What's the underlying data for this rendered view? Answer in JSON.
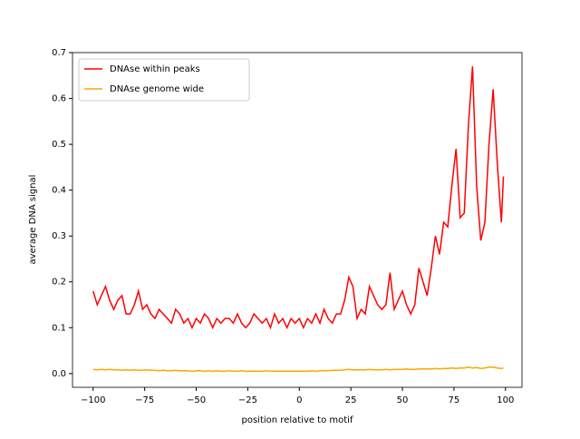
{
  "chart_data": {
    "type": "line",
    "xlabel": "position relative to motif",
    "ylabel": "average DNA signal",
    "x": [
      -100,
      -98,
      -96,
      -94,
      -92,
      -90,
      -88,
      -86,
      -84,
      -82,
      -80,
      -78,
      -76,
      -74,
      -72,
      -70,
      -68,
      -66,
      -64,
      -62,
      -60,
      -58,
      -56,
      -54,
      -52,
      -50,
      -48,
      -46,
      -44,
      -42,
      -40,
      -38,
      -36,
      -34,
      -32,
      -30,
      -28,
      -26,
      -24,
      -22,
      -20,
      -18,
      -16,
      -14,
      -12,
      -10,
      -8,
      -6,
      -4,
      -2,
      0,
      2,
      4,
      6,
      8,
      10,
      12,
      14,
      16,
      18,
      20,
      22,
      24,
      26,
      28,
      30,
      32,
      34,
      36,
      38,
      40,
      42,
      44,
      46,
      48,
      50,
      52,
      54,
      56,
      58,
      60,
      62,
      64,
      66,
      68,
      70,
      72,
      74,
      76,
      78,
      80,
      82,
      84,
      86,
      88,
      90,
      92,
      94,
      96,
      98,
      99
    ],
    "series": [
      {
        "name": "DNAse within peaks",
        "color": "#ff0000",
        "values": [
          0.18,
          0.15,
          0.17,
          0.19,
          0.16,
          0.14,
          0.16,
          0.17,
          0.13,
          0.13,
          0.15,
          0.18,
          0.14,
          0.15,
          0.13,
          0.12,
          0.14,
          0.13,
          0.12,
          0.11,
          0.14,
          0.13,
          0.11,
          0.12,
          0.1,
          0.12,
          0.11,
          0.13,
          0.12,
          0.1,
          0.12,
          0.11,
          0.12,
          0.12,
          0.11,
          0.13,
          0.11,
          0.1,
          0.11,
          0.13,
          0.12,
          0.11,
          0.12,
          0.1,
          0.13,
          0.11,
          0.12,
          0.1,
          0.12,
          0.11,
          0.12,
          0.1,
          0.12,
          0.11,
          0.13,
          0.11,
          0.14,
          0.12,
          0.11,
          0.13,
          0.13,
          0.16,
          0.21,
          0.19,
          0.12,
          0.14,
          0.13,
          0.19,
          0.17,
          0.15,
          0.14,
          0.15,
          0.22,
          0.14,
          0.16,
          0.18,
          0.15,
          0.13,
          0.15,
          0.23,
          0.2,
          0.17,
          0.23,
          0.3,
          0.26,
          0.33,
          0.32,
          0.41,
          0.49,
          0.34,
          0.35,
          0.54,
          0.67,
          0.41,
          0.29,
          0.33,
          0.5,
          0.62,
          0.46,
          0.33,
          0.43
        ]
      },
      {
        "name": "DNAse genome wide",
        "color": "#ffa500",
        "values": [
          0.009,
          0.008,
          0.009,
          0.008,
          0.009,
          0.008,
          0.008,
          0.007,
          0.008,
          0.007,
          0.008,
          0.007,
          0.007,
          0.008,
          0.007,
          0.007,
          0.006,
          0.007,
          0.006,
          0.006,
          0.007,
          0.006,
          0.006,
          0.006,
          0.005,
          0.006,
          0.006,
          0.005,
          0.006,
          0.005,
          0.006,
          0.005,
          0.005,
          0.006,
          0.005,
          0.005,
          0.006,
          0.005,
          0.005,
          0.005,
          0.005,
          0.005,
          0.006,
          0.005,
          0.005,
          0.005,
          0.005,
          0.005,
          0.005,
          0.005,
          0.005,
          0.005,
          0.005,
          0.006,
          0.005,
          0.006,
          0.006,
          0.006,
          0.007,
          0.007,
          0.007,
          0.008,
          0.009,
          0.008,
          0.008,
          0.008,
          0.008,
          0.009,
          0.008,
          0.008,
          0.008,
          0.009,
          0.008,
          0.009,
          0.009,
          0.009,
          0.01,
          0.009,
          0.009,
          0.01,
          0.01,
          0.01,
          0.01,
          0.011,
          0.01,
          0.011,
          0.011,
          0.012,
          0.011,
          0.012,
          0.012,
          0.014,
          0.012,
          0.013,
          0.011,
          0.012,
          0.014,
          0.014,
          0.012,
          0.011,
          0.012
        ]
      }
    ],
    "xlim": [
      -110,
      108
    ],
    "ylim": [
      -0.03,
      0.7
    ],
    "xticks": [
      {
        "value": -100,
        "label": "−100"
      },
      {
        "value": -75,
        "label": "−75"
      },
      {
        "value": -50,
        "label": "−50"
      },
      {
        "value": -25,
        "label": "−25"
      },
      0,
      25,
      50,
      75,
      100
    ],
    "yticks": [
      {
        "value": 0,
        "label": "0.0"
      },
      0.1,
      0.2,
      0.3,
      0.4,
      0.5,
      0.6,
      0.7
    ],
    "legend": "upper left"
  }
}
